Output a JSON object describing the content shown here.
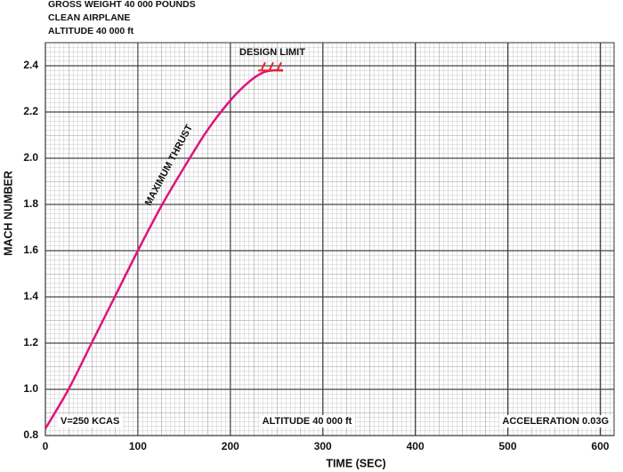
{
  "chart_data": {
    "type": "line",
    "header": [
      "GROSS WEIGHT 40 000 POUNDS",
      "CLEAN AIRPLANE",
      "ALTITUDE 40 000 ft"
    ],
    "x_label": "TIME (SEC)",
    "y_label": "MACH NUMBER",
    "x": [
      0,
      25,
      50,
      75,
      100,
      125,
      150,
      175,
      200,
      220,
      235,
      245,
      257
    ],
    "values": [
      0.83,
      1.0,
      1.2,
      1.4,
      1.6,
      1.79,
      1.96,
      2.12,
      2.25,
      2.33,
      2.37,
      2.38,
      2.38
    ],
    "color": "#e0137c",
    "xlim": [
      0,
      615
    ],
    "ylim": [
      0.8,
      2.5
    ],
    "xticks": [
      0,
      100,
      200,
      300,
      400,
      500,
      600
    ],
    "yticks": [
      0.8,
      {
        "value": 1.0,
        "label": "1.0"
      },
      1.2,
      1.4,
      1.6,
      1.8,
      {
        "value": 2.0,
        "label": "2.0"
      },
      2.2,
      2.4
    ],
    "grid": true,
    "annotations": [
      "DESIGN LIMIT",
      "MAXIMUM THRUST",
      "V=250 KCAS",
      "ALTITUDE 40 000 ft",
      "ACCELERATION 0.03G"
    ]
  }
}
